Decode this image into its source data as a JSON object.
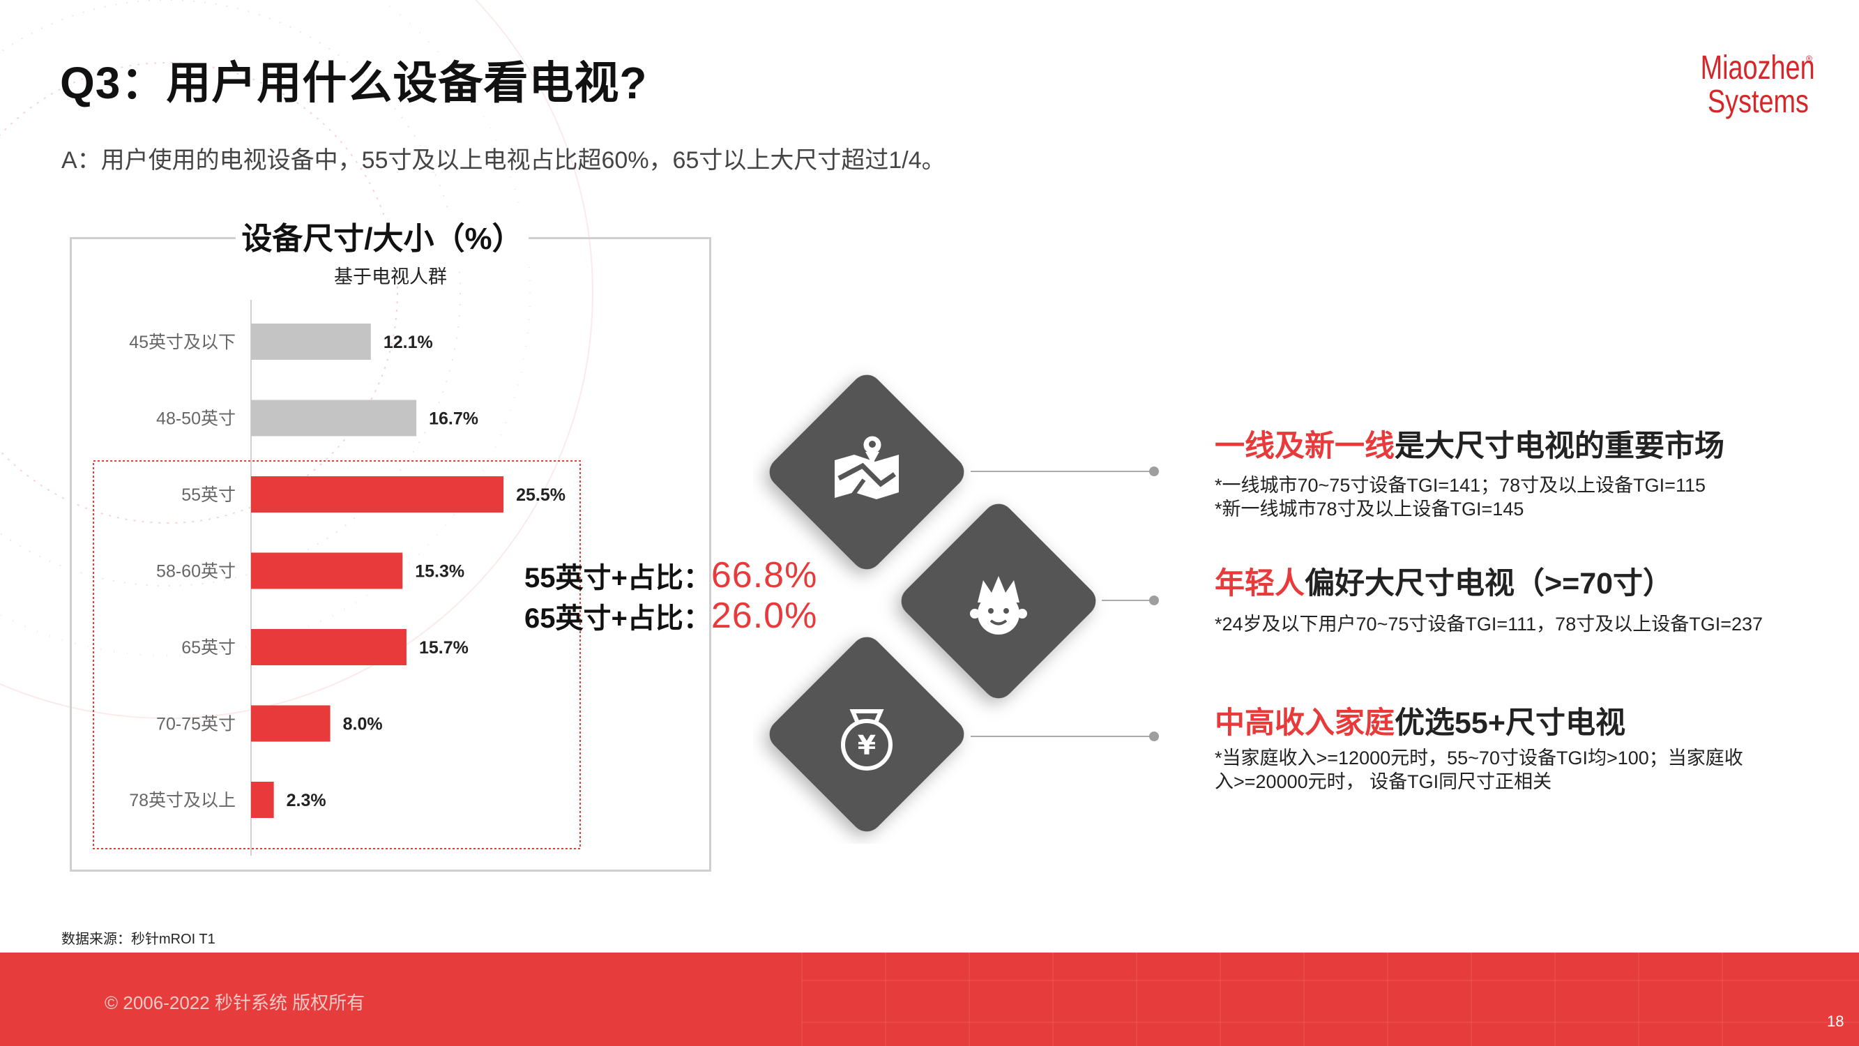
{
  "header": {
    "title": "Q3：用户用什么设备看电视?",
    "subtitle": "A：用户使用的电视设备中，55寸及以上电视占比超60%，65寸以上大尺寸超过1/4。"
  },
  "logo": {
    "line1": "Miaozhen",
    "line2": "Systems",
    "mark": "®"
  },
  "chart_data": {
    "type": "bar",
    "orientation": "horizontal",
    "title": "设备尺寸/大小（%）",
    "subtitle": "基于电视人群",
    "categories": [
      "45英寸及以下",
      "48-50英寸",
      "55英寸",
      "58-60英寸",
      "65英寸",
      "70-75英寸",
      "78英寸及以上"
    ],
    "values": [
      12.1,
      16.7,
      25.5,
      15.3,
      15.7,
      8.0,
      2.3
    ],
    "value_labels": [
      "12.1%",
      "16.7%",
      "25.5%",
      "15.3%",
      "15.7%",
      "8.0%",
      "2.3%"
    ],
    "highlight_from_index": 2,
    "colors": {
      "default": "#c4c4c4",
      "highlight": "#e83a3a"
    },
    "xlim": [
      0,
      30
    ],
    "grid": false
  },
  "summary": [
    {
      "label": "55英寸+占比：",
      "value": "66.8%"
    },
    {
      "label": "65英寸+占比：",
      "value": "26.0%"
    }
  ],
  "icons": [
    "map-location-icon",
    "young-person-icon",
    "money-bag-icon"
  ],
  "colors": {
    "accent": "#e83a3a",
    "diamond": "#555555",
    "footer": "#e63c3c"
  },
  "findings": [
    {
      "highlight": "一线及新一线",
      "rest": "是大尺寸电视的重要市场",
      "notes": [
        "*一线城市70~75寸设备TGI=141；78寸及以上设备TGI=115",
        "*新一线城市78寸及以上设备TGI=145"
      ]
    },
    {
      "highlight": "年轻人",
      "rest": "偏好大尺寸电视（>=70寸）",
      "notes": [
        "*24岁及以下用户70~75寸设备TGI=111，78寸及以上设备TGI=237"
      ]
    },
    {
      "highlight": "中高收入家庭",
      "rest": "优选55+尺寸电视",
      "notes": [
        "*当家庭收入>=12000元时，55~70寸设备TGI均>100；当家庭收入>=20000元时， 设备TGI同尺寸正相关"
      ]
    }
  ],
  "footer": {
    "source": "数据来源：秒针mROI T1",
    "copyright": "© 2006-2022 秒针系统 版权所有",
    "page": "18"
  }
}
